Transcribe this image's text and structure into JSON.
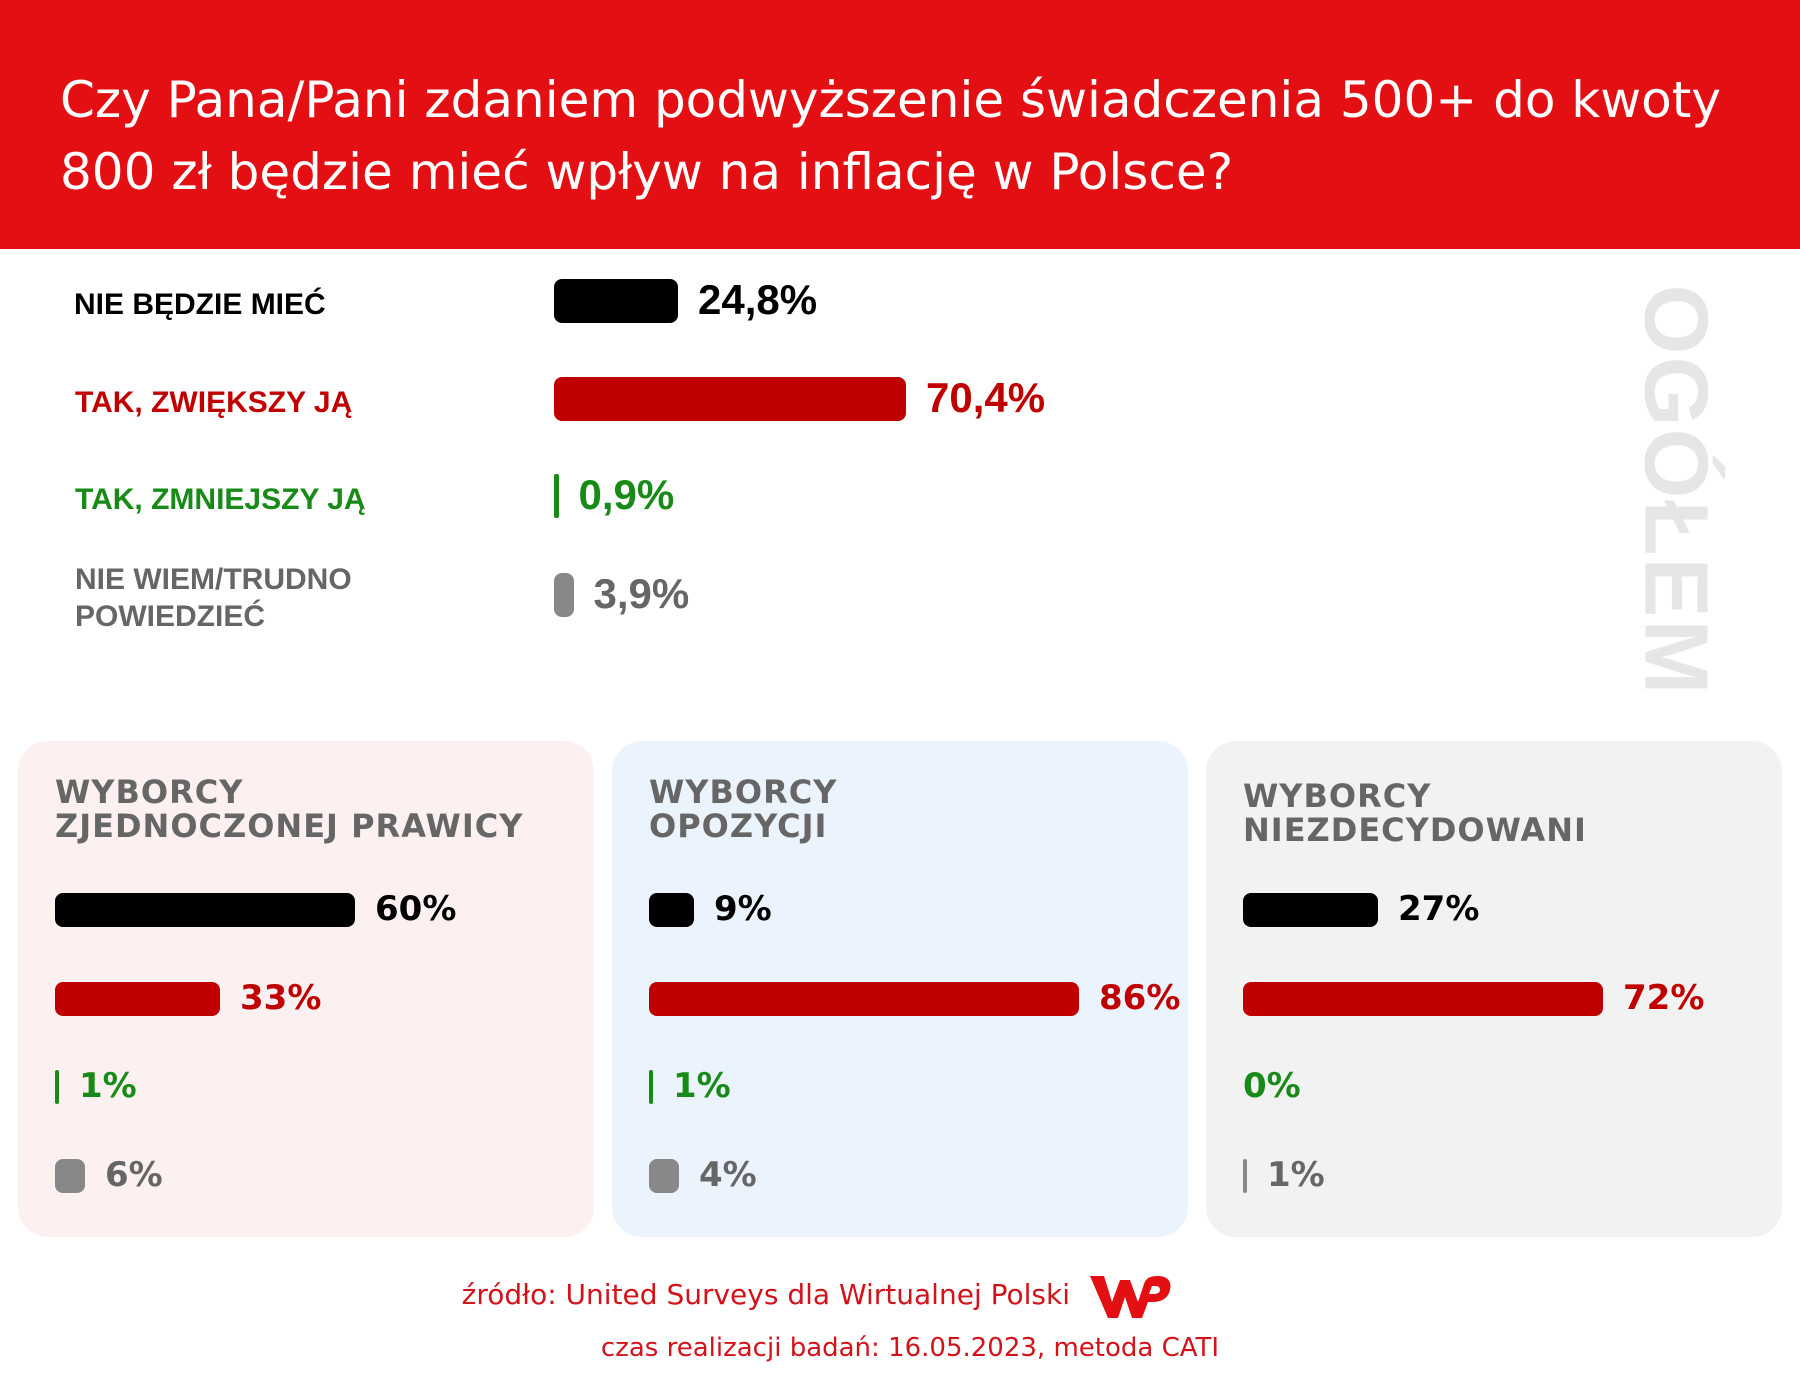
{
  "header": {
    "title": "Czy Pana/Pani zdaniem podwyższenie świadczenia 500+ do kwoty 800 zł będzie mieć wpływ na inflację w Polsce?"
  },
  "overall_label": "OGÓŁEM",
  "colors": {
    "header_bg": "#e30f13",
    "black": "#000000",
    "red": "#c00000",
    "green": "#178a17",
    "gray": "#888888",
    "pis_panel": "#fdf0f0",
    "opp_panel": "#ebf3fc",
    "und_panel": "#f2f2f2"
  },
  "chart_data": [
    {
      "type": "bar",
      "orientation": "horizontal",
      "title": "OGÓŁEM",
      "categories": [
        "NIE BĘDZIE MIEĆ",
        "TAK, ZWIĘKSZY JĄ",
        "TAK, ZMNIEJSZY JĄ",
        "NIE WIEM/TRUDNO\nPOWIEDZIEĆ"
      ],
      "values": [
        24.8,
        70.4,
        0.9,
        3.9
      ],
      "value_labels": [
        "24,8%",
        "70,4%",
        "0,9%",
        "3,9%"
      ],
      "colors": [
        "#000000",
        "#c00000",
        "#178a17",
        "#888888"
      ]
    },
    {
      "type": "bar",
      "orientation": "horizontal",
      "title": "WYBORCY\nZJEDNOCZONEJ PRAWICY",
      "values": [
        60,
        33,
        1,
        6
      ],
      "value_labels": [
        "60%",
        "33%",
        "1%",
        "6%"
      ],
      "colors": [
        "#000000",
        "#c00000",
        "#178a17",
        "#888888"
      ]
    },
    {
      "type": "bar",
      "orientation": "horizontal",
      "title": "WYBORCY\nOPOZYCJI",
      "values": [
        9,
        86,
        1,
        4
      ],
      "value_labels": [
        "9%",
        "86%",
        "1%",
        "4%"
      ],
      "colors": [
        "#000000",
        "#c00000",
        "#178a17",
        "#888888"
      ]
    },
    {
      "type": "bar",
      "orientation": "horizontal",
      "title": "WYBORCY\nNIEZDECYDOWANI",
      "values": [
        27,
        72,
        0,
        1
      ],
      "value_labels": [
        "27%",
        "72%",
        "0%",
        "1%"
      ],
      "colors": [
        "#000000",
        "#c00000",
        "#178a17",
        "#888888"
      ]
    }
  ],
  "footer": {
    "source": "źródło: United Surveys dla Wirtualnej Polski",
    "date": "czas realizacji badań: 16.05.2023, metoda CATI",
    "logo_text": "WP"
  }
}
